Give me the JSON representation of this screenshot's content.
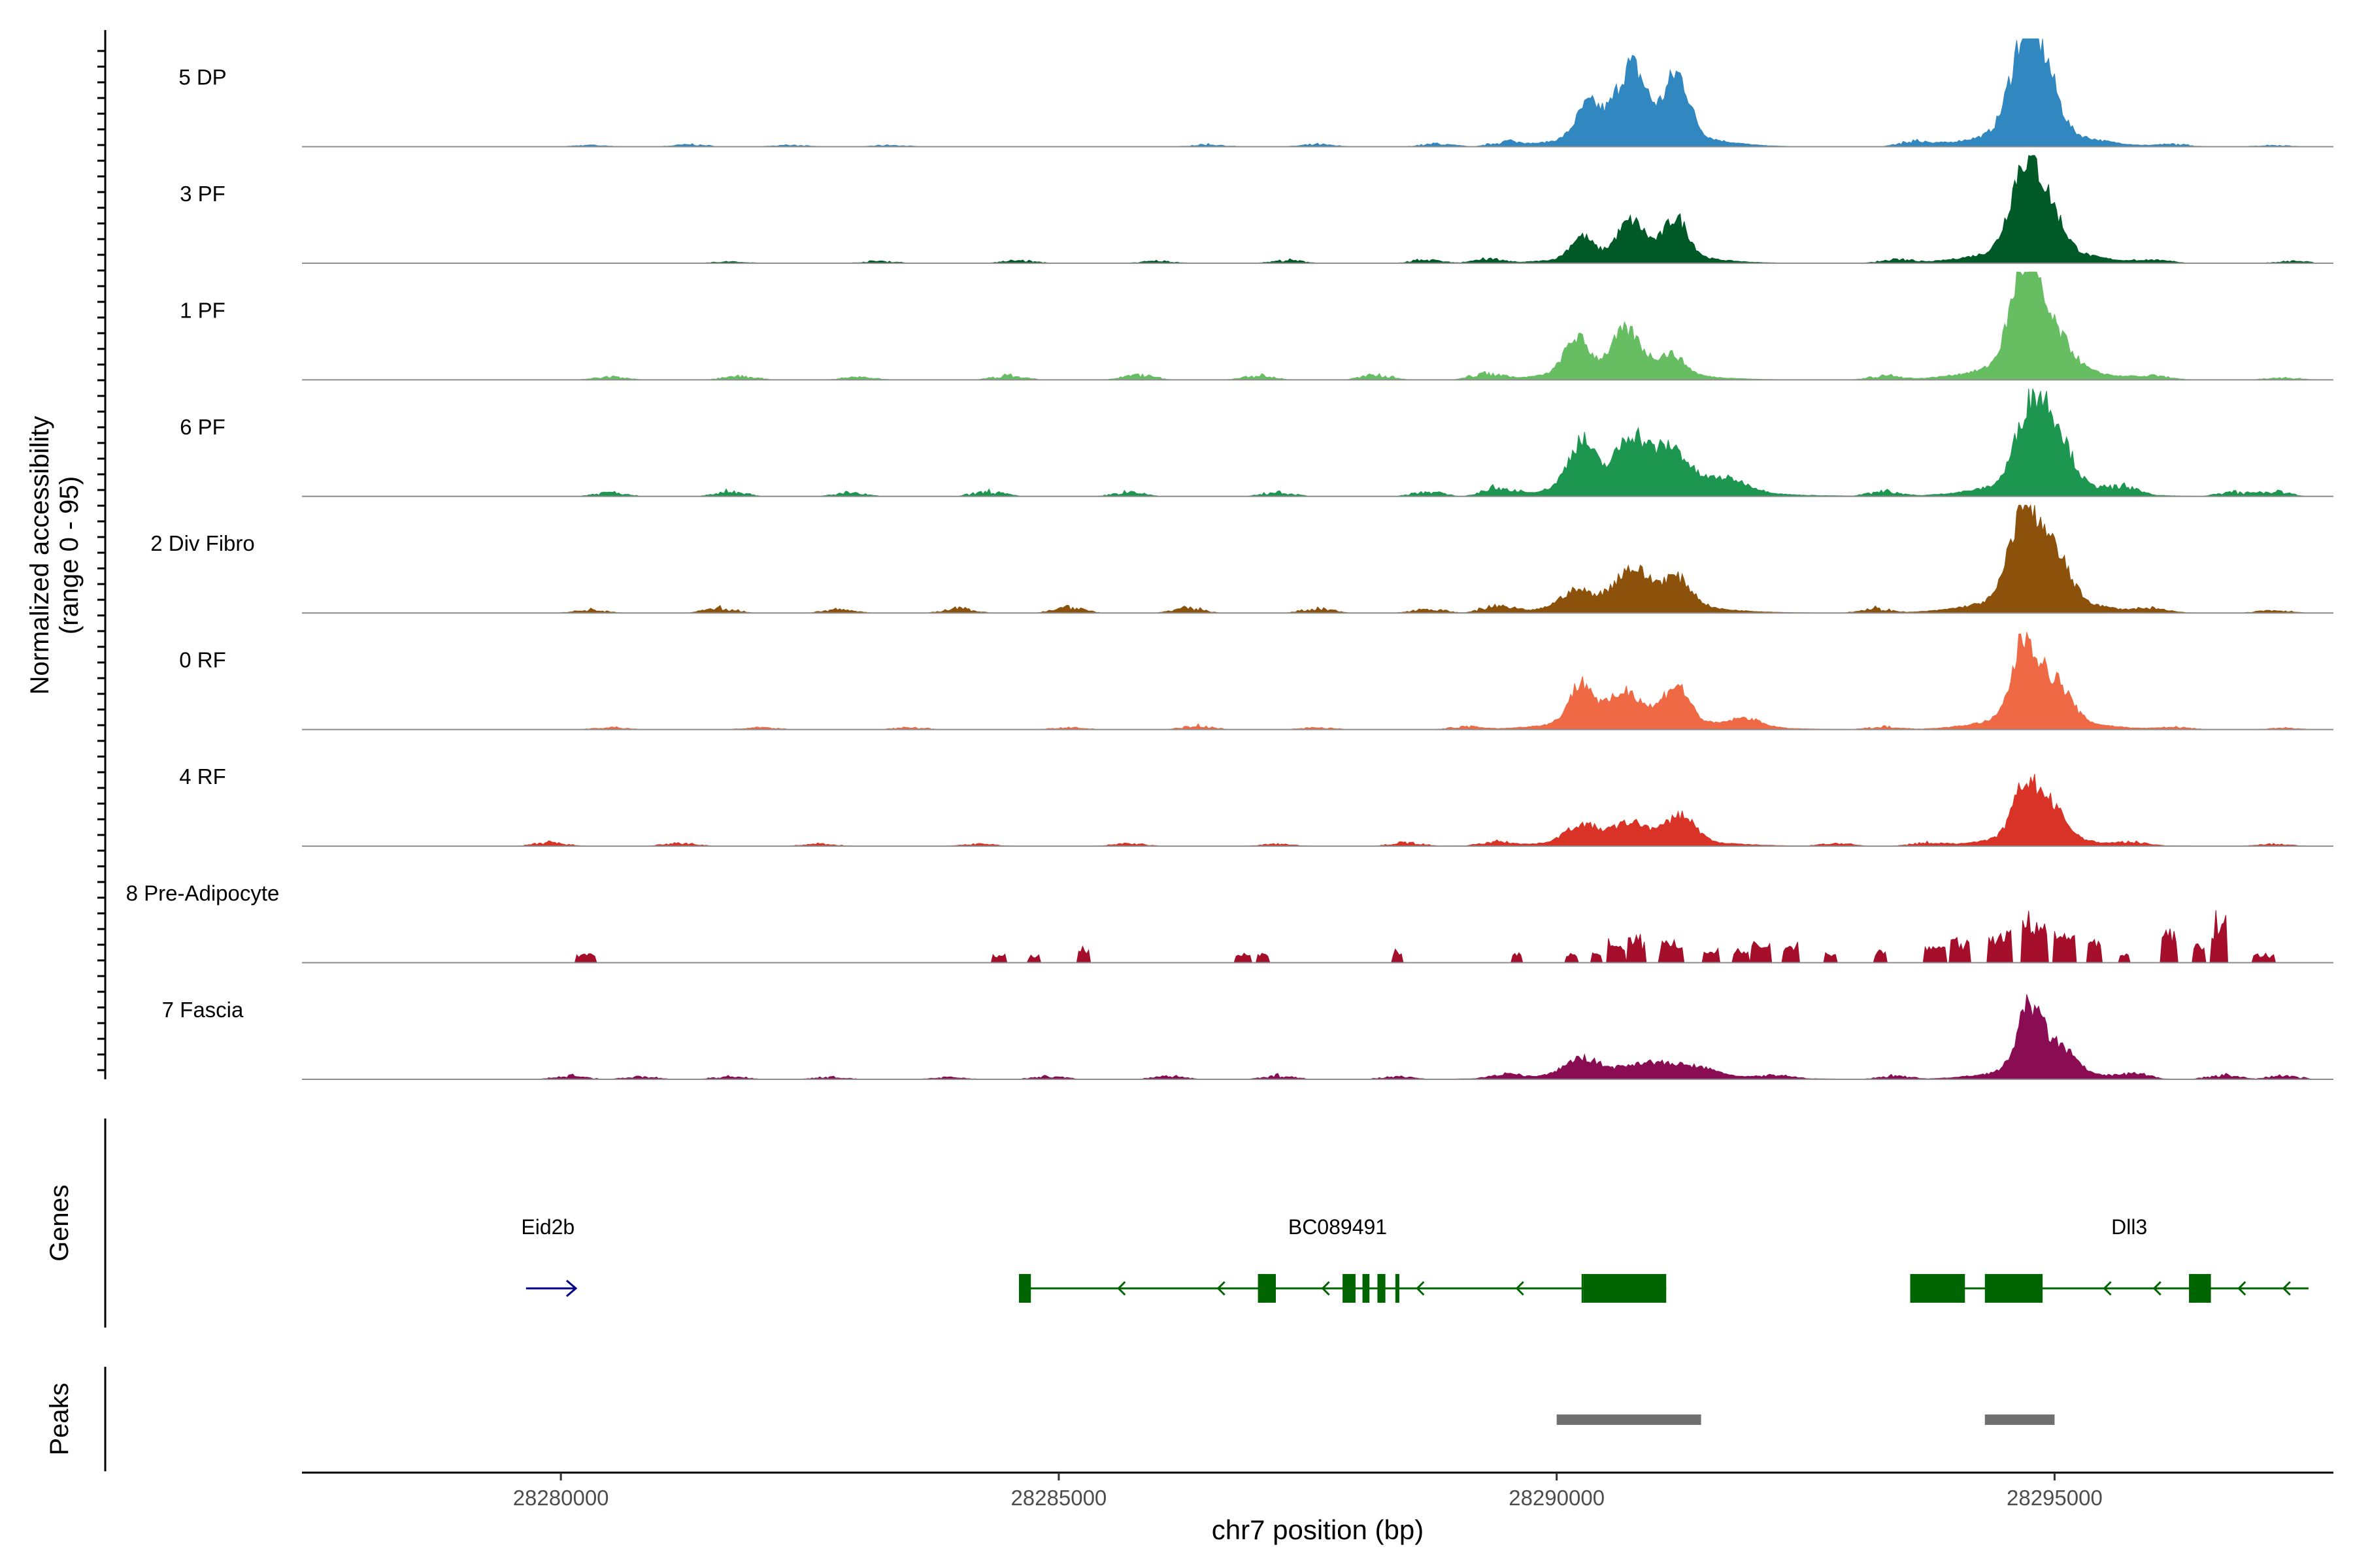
{
  "chart_data": {
    "type": "area",
    "title": "",
    "xlabel": "chr7 position (bp)",
    "xlim": [
      28277400,
      28297800
    ],
    "x_ticks": [
      28280000,
      28285000,
      28290000,
      28295000
    ],
    "x_tick_labels": [
      "28280000",
      "28285000",
      "28290000",
      "28295000"
    ],
    "ylabel_line1": "Normalized accessibility",
    "ylabel_line2": "(range 0 - 95)",
    "ylim": [
      0,
      95
    ],
    "track_start": 28279600,
    "track_end": 28297600,
    "tracks": [
      {
        "name": "5 DP",
        "color": "#3187c0",
        "peaks": [
          [
            28290320,
            0.3,
            120
          ],
          [
            28290750,
            0.62,
            150
          ],
          [
            28291210,
            0.55,
            120
          ],
          [
            28294720,
            0.95,
            150
          ],
          [
            28294950,
            0.3,
            120
          ]
        ],
        "noise": [
          [
            28280300,
            0.02
          ],
          [
            28281300,
            0.03
          ],
          [
            28282300,
            0.02
          ],
          [
            28283300,
            0.02
          ],
          [
            28286500,
            0.03
          ],
          [
            28287600,
            0.03
          ],
          [
            28288800,
            0.04
          ],
          [
            28289500,
            0.06
          ],
          [
            28293600,
            0.06
          ],
          [
            28296200,
            0.03
          ],
          [
            28297200,
            0.02
          ]
        ]
      },
      {
        "name": "3 PF",
        "color": "#005a28",
        "peaks": [
          [
            28290250,
            0.2,
            110
          ],
          [
            28290750,
            0.32,
            140
          ],
          [
            28291200,
            0.35,
            120
          ],
          [
            28294700,
            0.78,
            140
          ],
          [
            28294950,
            0.35,
            140
          ]
        ],
        "noise": [
          [
            28281700,
            0.02
          ],
          [
            28283200,
            0.03
          ],
          [
            28284600,
            0.04
          ],
          [
            28286000,
            0.03
          ],
          [
            28287300,
            0.04
          ],
          [
            28288700,
            0.05
          ],
          [
            28289300,
            0.06
          ],
          [
            28293400,
            0.05
          ],
          [
            28296000,
            0.04
          ],
          [
            28297400,
            0.03
          ]
        ]
      },
      {
        "name": "1 PF",
        "color": "#66bd62",
        "peaks": [
          [
            28290200,
            0.32,
            120
          ],
          [
            28290700,
            0.38,
            150
          ],
          [
            28291150,
            0.18,
            130
          ],
          [
            28294700,
            0.92,
            140
          ],
          [
            28295000,
            0.3,
            160
          ]
        ],
        "noise": [
          [
            28280500,
            0.04
          ],
          [
            28281800,
            0.05
          ],
          [
            28283000,
            0.04
          ],
          [
            28284500,
            0.06
          ],
          [
            28285800,
            0.07
          ],
          [
            28287000,
            0.06
          ],
          [
            28288200,
            0.07
          ],
          [
            28289300,
            0.09
          ],
          [
            28293300,
            0.06
          ],
          [
            28296000,
            0.04
          ],
          [
            28297300,
            0.03
          ]
        ]
      },
      {
        "name": "6 PF",
        "color": "#1d964f",
        "peaks": [
          [
            28290250,
            0.42,
            130
          ],
          [
            28290750,
            0.45,
            150
          ],
          [
            28291150,
            0.35,
            160
          ],
          [
            28291700,
            0.12,
            220
          ],
          [
            28294750,
            0.66,
            140
          ],
          [
            28295000,
            0.5,
            150
          ]
        ],
        "noise": [
          [
            28280500,
            0.06
          ],
          [
            28281700,
            0.07
          ],
          [
            28282900,
            0.05
          ],
          [
            28284300,
            0.07
          ],
          [
            28285700,
            0.06
          ],
          [
            28287200,
            0.06
          ],
          [
            28288700,
            0.07
          ],
          [
            28289400,
            0.1
          ],
          [
            28293300,
            0.07
          ],
          [
            28295700,
            0.08
          ],
          [
            28296800,
            0.06
          ],
          [
            28297200,
            0.07
          ]
        ]
      },
      {
        "name": "2 Div Fibro",
        "color": "#8c510b",
        "peaks": [
          [
            28290200,
            0.16,
            160
          ],
          [
            28290750,
            0.34,
            170
          ],
          [
            28291200,
            0.26,
            150
          ],
          [
            28294700,
            0.87,
            140
          ],
          [
            28295000,
            0.4,
            150
          ]
        ],
        "noise": [
          [
            28280300,
            0.04
          ],
          [
            28281600,
            0.07
          ],
          [
            28282800,
            0.05
          ],
          [
            28284000,
            0.06
          ],
          [
            28285100,
            0.09
          ],
          [
            28286300,
            0.07
          ],
          [
            28287600,
            0.06
          ],
          [
            28288700,
            0.06
          ],
          [
            28289400,
            0.08
          ],
          [
            28293200,
            0.06
          ],
          [
            28296000,
            0.05
          ],
          [
            28297200,
            0.04
          ]
        ]
      },
      {
        "name": "0 RF",
        "color": "#ef6944",
        "peaks": [
          [
            28290250,
            0.36,
            120
          ],
          [
            28290700,
            0.28,
            160
          ],
          [
            28291200,
            0.34,
            130
          ],
          [
            28291900,
            0.08,
            160
          ],
          [
            28294700,
            0.7,
            120
          ],
          [
            28295000,
            0.35,
            150
          ]
        ],
        "noise": [
          [
            28280500,
            0.03
          ],
          [
            28282000,
            0.03
          ],
          [
            28283500,
            0.03
          ],
          [
            28285100,
            0.03
          ],
          [
            28286400,
            0.05
          ],
          [
            28287600,
            0.03
          ],
          [
            28289100,
            0.04
          ],
          [
            28293300,
            0.04
          ],
          [
            28296200,
            0.03
          ],
          [
            28297300,
            0.02
          ]
        ]
      },
      {
        "name": "4 RF",
        "color": "#d93327",
        "peaks": [
          [
            28290250,
            0.16,
            160
          ],
          [
            28290750,
            0.17,
            180
          ],
          [
            28291250,
            0.24,
            140
          ],
          [
            28294700,
            0.44,
            120
          ],
          [
            28294950,
            0.3,
            150
          ]
        ],
        "noise": [
          [
            28279900,
            0.05
          ],
          [
            28281200,
            0.04
          ],
          [
            28282600,
            0.03
          ],
          [
            28284200,
            0.03
          ],
          [
            28285700,
            0.04
          ],
          [
            28287200,
            0.03
          ],
          [
            28288500,
            0.05
          ],
          [
            28289400,
            0.05
          ],
          [
            28292800,
            0.04
          ],
          [
            28293700,
            0.04
          ],
          [
            28295800,
            0.04
          ],
          [
            28297200,
            0.03
          ]
        ]
      },
      {
        "name": "8 Pre-Adipocyte",
        "color": "#a50f2b",
        "blocks": [
          [
            28280250,
            200,
            0.09
          ],
          [
            28284400,
            130,
            0.08
          ],
          [
            28284750,
            100,
            0.07
          ],
          [
            28285250,
            120,
            0.14
          ],
          [
            28286850,
            150,
            0.09
          ],
          [
            28287050,
            110,
            0.1
          ],
          [
            28288400,
            110,
            0.13
          ],
          [
            28289600,
            110,
            0.09
          ],
          [
            28290150,
            110,
            0.09
          ],
          [
            28290400,
            100,
            0.12
          ],
          [
            28290600,
            160,
            0.22
          ],
          [
            28290800,
            160,
            0.24
          ],
          [
            28291150,
            220,
            0.21
          ],
          [
            28291550,
            140,
            0.13
          ],
          [
            28291850,
            140,
            0.15
          ],
          [
            28292050,
            200,
            0.21
          ],
          [
            28292350,
            140,
            0.19
          ],
          [
            28292750,
            120,
            0.12
          ],
          [
            28293250,
            120,
            0.12
          ],
          [
            28293800,
            200,
            0.16
          ],
          [
            28294050,
            180,
            0.24
          ],
          [
            28294450,
            220,
            0.29
          ],
          [
            28294800,
            260,
            0.44
          ],
          [
            28295100,
            200,
            0.3
          ],
          [
            28295400,
            150,
            0.22
          ],
          [
            28295700,
            100,
            0.1
          ],
          [
            28296150,
            160,
            0.31
          ],
          [
            28296450,
            120,
            0.17
          ],
          [
            28296650,
            150,
            0.45
          ],
          [
            28297100,
            220,
            0.08
          ]
        ]
      },
      {
        "name": "7 Fascia",
        "color": "#8a0d54",
        "peaks": [
          [
            28290250,
            0.16,
            170
          ],
          [
            28290900,
            0.12,
            250
          ],
          [
            28291400,
            0.08,
            220
          ],
          [
            28294750,
            0.58,
            120
          ],
          [
            28295050,
            0.22,
            150
          ]
        ],
        "noise": [
          [
            28280100,
            0.05
          ],
          [
            28280800,
            0.04
          ],
          [
            28281700,
            0.04
          ],
          [
            28282700,
            0.03
          ],
          [
            28283900,
            0.03
          ],
          [
            28284900,
            0.04
          ],
          [
            28286100,
            0.05
          ],
          [
            28287200,
            0.05
          ],
          [
            28288400,
            0.04
          ],
          [
            28289500,
            0.06
          ],
          [
            28292200,
            0.05
          ],
          [
            28293400,
            0.05
          ],
          [
            28295800,
            0.06
          ],
          [
            28296700,
            0.06
          ],
          [
            28297300,
            0.05
          ]
        ]
      }
    ]
  },
  "genes_panel": {
    "label": "Genes",
    "genes": [
      {
        "name": "Eid2b",
        "label_x": 28279870,
        "start": 28279650,
        "end": 28280150,
        "strand": "+",
        "color": "#00008b",
        "exons": [],
        "arrows": []
      },
      {
        "name": "BC089491",
        "label_x": 28287800,
        "start": 28284600,
        "end": 28291100,
        "strand": "-",
        "color": "#006400",
        "exons": [
          [
            28284600,
            28284720
          ],
          [
            28287000,
            28287180
          ],
          [
            28287850,
            28287980
          ],
          [
            28288050,
            28288120
          ],
          [
            28288200,
            28288280
          ],
          [
            28288380,
            28288420
          ],
          [
            28290250,
            28290270
          ],
          [
            28290270,
            28291100
          ]
        ],
        "arrows": [
          28285600,
          28286600,
          28287650,
          28288600,
          28289600
        ]
      },
      {
        "name": "Dll3",
        "label_x": 28295750,
        "start": 28293550,
        "end": 28297550,
        "strand": "-",
        "color": "#006400",
        "exons": [
          [
            28293550,
            28294100
          ],
          [
            28294300,
            28294880
          ],
          [
            28296350,
            28296570
          ]
        ],
        "arrows": [
          28295500,
          28296000,
          28296850,
          28297300
        ]
      }
    ]
  },
  "peaks_panel": {
    "label": "Peaks",
    "peaks": [
      [
        28290000,
        28291450
      ],
      [
        28294300,
        28295000
      ]
    ],
    "color": "#707070"
  }
}
